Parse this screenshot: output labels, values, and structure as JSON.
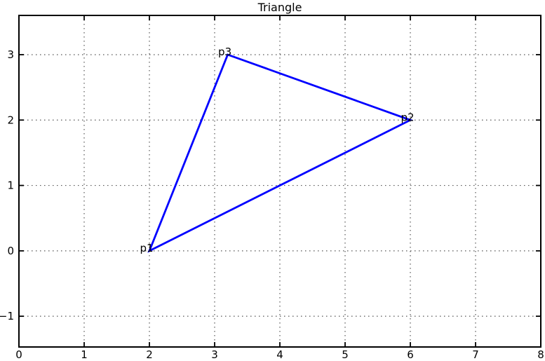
{
  "chart_data": {
    "type": "line",
    "title": "Triangle",
    "xlabel": "",
    "ylabel": "",
    "legend": "none",
    "grid": "dotted",
    "xlim": [
      0,
      8
    ],
    "ylim": [
      -1.47,
      3.6
    ],
    "xticks": [
      {
        "value": 0,
        "label": "0"
      },
      {
        "value": 1,
        "label": "1"
      },
      {
        "value": 2,
        "label": "2"
      },
      {
        "value": 3,
        "label": "3"
      },
      {
        "value": 4,
        "label": "4"
      },
      {
        "value": 5,
        "label": "5"
      },
      {
        "value": 6,
        "label": "6"
      },
      {
        "value": 7,
        "label": "7"
      },
      {
        "value": 8,
        "label": "8"
      }
    ],
    "yticks": [
      {
        "value": -1,
        "label": "−1"
      },
      {
        "value": 0,
        "label": "0"
      },
      {
        "value": 1,
        "label": "1"
      },
      {
        "value": 2,
        "label": "2"
      },
      {
        "value": 3,
        "label": "3"
      }
    ],
    "series": [
      {
        "name": "triangle",
        "closed": true,
        "points": [
          {
            "label": "p1",
            "x": 2,
            "y": 0
          },
          {
            "label": "p2",
            "x": 6,
            "y": 2
          },
          {
            "label": "p3",
            "x": 3.2,
            "y": 3
          }
        ]
      }
    ],
    "colors": {
      "line": "#0000ff",
      "axis": "#000000",
      "grid": "#555555",
      "text": "#000000",
      "background": "#ffffff"
    }
  }
}
